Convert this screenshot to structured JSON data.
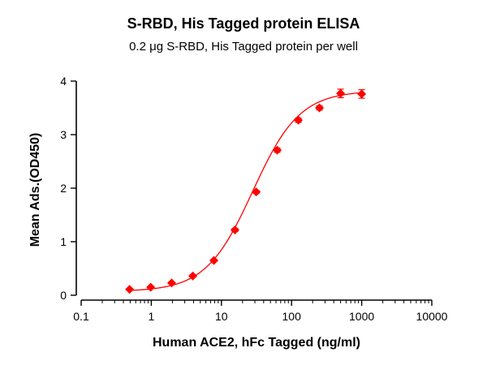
{
  "colors": {
    "series": "#ff0000",
    "axis": "#000000",
    "background": "#ffffff"
  },
  "chart_data": {
    "type": "scatter",
    "title": "S-RBD, His Tagged protein ELISA",
    "subtitle": "0.2 μg S-RBD, His Tagged protein per well",
    "xlabel": "Human ACE2, hFc Tagged (ng/ml)",
    "ylabel": "Mean Ads.(OD450)",
    "x_scale": "log",
    "xlim": [
      0.1,
      10000
    ],
    "ylim": [
      0,
      4
    ],
    "x_ticks": [
      0.1,
      1,
      10,
      100,
      1000,
      10000
    ],
    "x_tick_labels": [
      "0.1",
      "1",
      "10",
      "100",
      "1000",
      "10000"
    ],
    "y_ticks": [
      0,
      1,
      2,
      3,
      4
    ],
    "y_tick_labels": [
      "0",
      "1",
      "2",
      "3",
      "4"
    ],
    "grid": false,
    "legend": "none",
    "marker": "diamond",
    "fit_line": "sigmoidal",
    "series": [
      {
        "x": [
          0.49,
          0.98,
          1.95,
          3.91,
          7.81,
          15.6,
          31.3,
          62.5,
          125,
          250,
          500,
          1000
        ],
        "y": [
          0.11,
          0.15,
          0.23,
          0.36,
          0.65,
          1.22,
          1.93,
          2.71,
          3.27,
          3.5,
          3.77,
          3.76
        ],
        "error": [
          0.01,
          0.01,
          0.01,
          0.02,
          0.02,
          0.03,
          0.03,
          0.04,
          0.04,
          0.04,
          0.08,
          0.08
        ]
      }
    ]
  }
}
